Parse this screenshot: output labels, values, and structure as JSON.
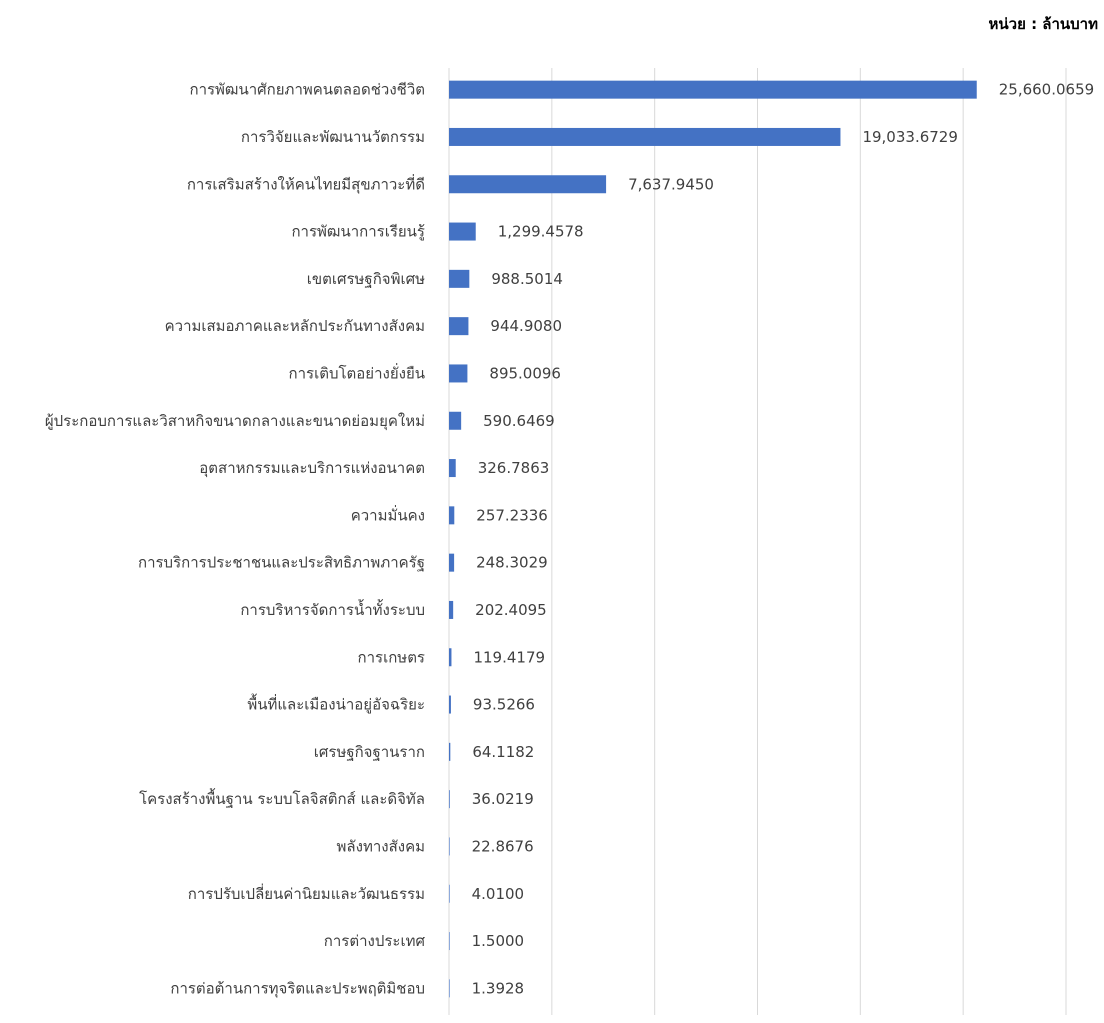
{
  "unit_label": "หน่วย : ล้านบาท",
  "colors": {
    "bar": "#4472C4",
    "grid": "#d9d9d9",
    "text": "#404040"
  },
  "chart_data": {
    "type": "bar",
    "orientation": "horizontal",
    "title": "",
    "xlabel": "",
    "ylabel": "",
    "xlim": [
      0,
      30000
    ],
    "grid": true,
    "categories": [
      "การพัฒนาศักยภาพคนตลอดช่วงชีวิต",
      "การวิจัยและพัฒนานวัตกรรม",
      "การเสริมสร้างให้คนไทยมีสุขภาวะที่ดี",
      "การพัฒนาการเรียนรู้",
      "เขตเศรษฐกิจพิเศษ",
      "ความเสมอภาคและหลักประกันทางสังคม",
      "การเติบโตอย่างยั่งยืน",
      "ผู้ประกอบการและวิสาหกิจขนาดกลางและขนาดย่อมยุคใหม่",
      "อุตสาหกรรมและบริการแห่งอนาคต",
      "ความมั่นคง",
      "การบริการประชาชนและประสิทธิภาพภาครัฐ",
      "การบริหารจัดการน้ำทั้งระบบ",
      "การเกษตร",
      "พื้นที่และเมืองน่าอยู่อัจฉริยะ",
      "เศรษฐกิจฐานราก",
      "โครงสร้างพื้นฐาน ระบบโลจิสติกส์ และดิจิทัล",
      "พลังทางสังคม",
      "การปรับเปลี่ยนค่านิยมและวัฒนธรรม",
      "การต่างประเทศ",
      "การต่อต้านการทุจริตและประพฤติมิชอบ"
    ],
    "values": [
      25660.0659,
      19033.6729,
      7637.945,
      1299.4578,
      988.5014,
      944.908,
      895.0096,
      590.6469,
      326.7863,
      257.2336,
      248.3029,
      202.4095,
      119.4179,
      93.5266,
      64.1182,
      36.0219,
      22.8676,
      4.01,
      1.5,
      1.3928
    ],
    "value_labels": [
      "25,660.0659",
      "19,033.6729",
      "7,637.9450",
      "1,299.4578",
      "988.5014",
      "944.9080",
      "895.0096",
      "590.6469",
      "326.7863",
      "257.2336",
      "248.3029",
      "202.4095",
      "119.4179",
      "93.5266",
      "64.1182",
      "36.0219",
      "22.8676",
      "4.0100",
      "1.5000",
      "1.3928"
    ]
  }
}
